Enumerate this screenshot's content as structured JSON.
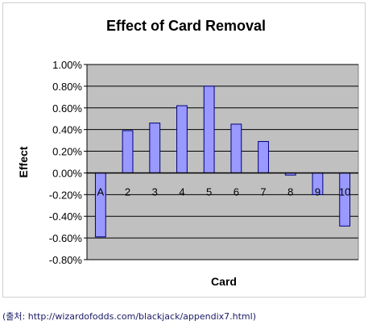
{
  "chart_data": {
    "type": "bar",
    "title": "Effect of Card Removal",
    "xlabel": "Card",
    "ylabel": "Effect",
    "categories": [
      "A",
      "2",
      "3",
      "4",
      "5",
      "6",
      "7",
      "8",
      "9",
      "10"
    ],
    "series": [
      {
        "values": [
          -0.59,
          0.39,
          0.46,
          0.62,
          0.8,
          0.45,
          0.29,
          -0.02,
          -0.2,
          -0.49
        ]
      }
    ],
    "ylim": [
      -0.8,
      1.0
    ],
    "yticks": [
      "1.00%",
      "0.80%",
      "0.60%",
      "0.40%",
      "0.20%",
      "0.00%",
      "-0.20%",
      "-0.40%",
      "-0.60%",
      "-0.80%"
    ],
    "unit": "%",
    "grid": true,
    "legend": "none",
    "colors": {
      "plot_background": "#c0c0c0",
      "bar_fill": "#9999ff",
      "bar_stroke": "#000080",
      "gridline": "#000000"
    }
  },
  "caption": {
    "prefix": "(출처: ",
    "url": "http://wizardofodds.com/blackjack/appendix7.html",
    "suffix": ")"
  }
}
